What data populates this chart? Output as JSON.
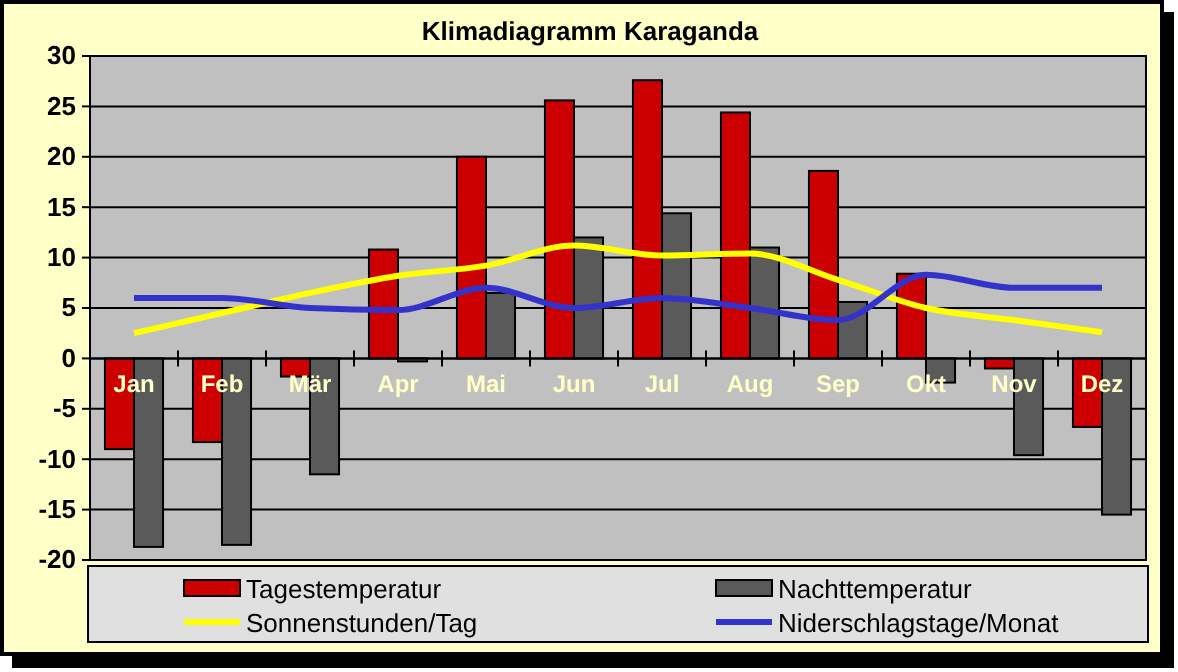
{
  "chart_data": {
    "type": "bar",
    "title": "Klimadiagramm Karaganda",
    "categories": [
      "Jan",
      "Feb",
      "Mär",
      "Apr",
      "Mai",
      "Jun",
      "Jul",
      "Aug",
      "Sep",
      "Okt",
      "Nov",
      "Dez"
    ],
    "series": [
      {
        "name": "Tagestemperatur",
        "color": "#cc0000",
        "values": [
          -9,
          -8.3,
          -1.8,
          10.8,
          20,
          25.6,
          27.6,
          24.4,
          18.6,
          8.4,
          -1,
          -6.8
        ]
      },
      {
        "name": "Nachttemperatur",
        "color": "#5a5a5a",
        "values": [
          -18.7,
          -18.5,
          -11.5,
          -0.3,
          6.5,
          12,
          14.4,
          11,
          5.6,
          -2.4,
          -9.6,
          -15.5
        ]
      },
      {
        "name": "Sonnenstunden/Tag",
        "type": "line",
        "color": "#ffff00",
        "values": [
          2.5,
          4.5,
          6.5,
          8.2,
          9.2,
          11.2,
          10.2,
          10.4,
          7.8,
          5,
          3.8,
          2.6
        ]
      },
      {
        "name": "Niderschlagstage/Monat",
        "type": "line",
        "color": "#3333cc",
        "values": [
          6,
          6,
          5,
          4.8,
          7,
          5,
          6,
          5,
          3.8,
          8.3,
          7,
          7
        ]
      }
    ],
    "ylim": [
      -20,
      30
    ],
    "yticks": [
      -20,
      -15,
      -10,
      -5,
      0,
      5,
      10,
      15,
      20,
      25,
      30
    ],
    "grid": "y",
    "legend": "bottom",
    "marker": "none"
  }
}
